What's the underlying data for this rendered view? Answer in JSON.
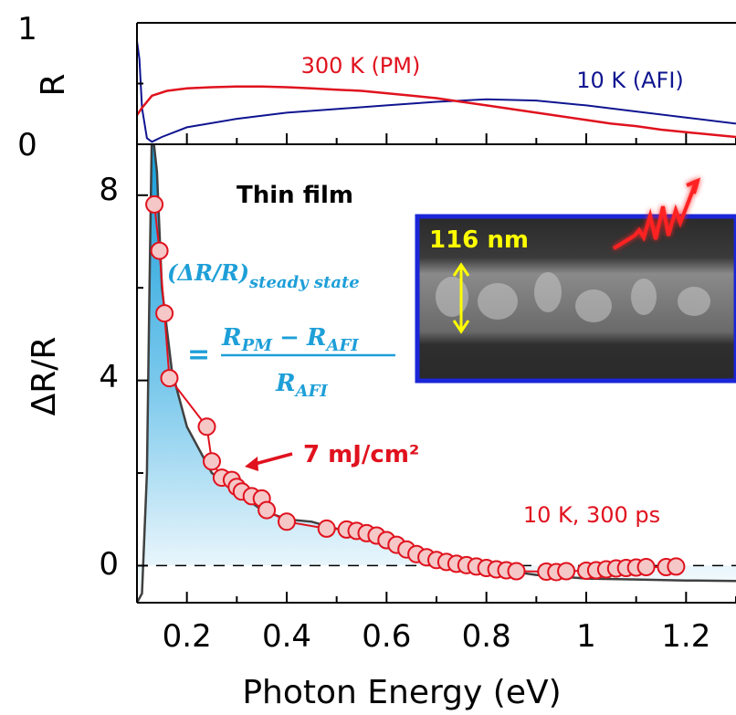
{
  "chart_data": [
    {
      "type": "line",
      "panel": "top",
      "ylabel": "R",
      "xlim": [
        0.1,
        1.3
      ],
      "ylim": [
        0,
        1
      ],
      "y_ticks": [
        "0",
        "1"
      ],
      "series": [
        {
          "name": "300 K (PM)",
          "color": "#e0121e",
          "x": [
            0.1,
            0.11,
            0.13,
            0.16,
            0.2,
            0.25,
            0.3,
            0.35,
            0.4,
            0.45,
            0.5,
            0.55,
            0.6,
            0.65,
            0.7,
            0.75,
            0.8,
            0.85,
            0.9,
            0.95,
            1.0,
            1.05,
            1.1,
            1.15,
            1.2,
            1.25,
            1.3
          ],
          "y": [
            0.24,
            0.3,
            0.4,
            0.44,
            0.46,
            0.47,
            0.475,
            0.475,
            0.47,
            0.46,
            0.45,
            0.44,
            0.42,
            0.4,
            0.38,
            0.35,
            0.32,
            0.29,
            0.26,
            0.23,
            0.2,
            0.17,
            0.15,
            0.12,
            0.1,
            0.08,
            0.06
          ]
        },
        {
          "name": "10 K (AFI)",
          "color": "#0f1590",
          "x": [
            0.1,
            0.105,
            0.11,
            0.12,
            0.13,
            0.15,
            0.2,
            0.3,
            0.4,
            0.5,
            0.6,
            0.7,
            0.8,
            0.9,
            1.0,
            1.1,
            1.2,
            1.3
          ],
          "y": [
            0.85,
            0.7,
            0.3,
            0.05,
            0.02,
            0.06,
            0.14,
            0.21,
            0.26,
            0.29,
            0.32,
            0.35,
            0.37,
            0.36,
            0.32,
            0.27,
            0.22,
            0.17
          ]
        }
      ],
      "annotations": [
        "300 K (PM)",
        "10 K (AFI)"
      ]
    },
    {
      "type": "line",
      "panel": "bottom",
      "xlabel": "Photon Energy (eV)",
      "ylabel": "ΔR/R",
      "xlim": [
        0.1,
        1.3
      ],
      "ylim": [
        -0.8,
        9.1
      ],
      "x_ticks": [
        "0.2",
        "0.4",
        "0.6",
        "0.8",
        "1",
        "1.2"
      ],
      "y_ticks": [
        "0",
        "4",
        "8"
      ],
      "series": [
        {
          "name": "(ΔR/R) steady state",
          "color": "#404040",
          "x": [
            0.1,
            0.11,
            0.12,
            0.125,
            0.13,
            0.14,
            0.15,
            0.17,
            0.2,
            0.25,
            0.3,
            0.35,
            0.4,
            0.45,
            0.5,
            0.6,
            0.7,
            0.8,
            0.9,
            1.0,
            1.1,
            1.2,
            1.3
          ],
          "y": [
            -0.8,
            -0.6,
            2.0,
            6.0,
            9.5,
            8.5,
            6.0,
            4.2,
            3.0,
            2.0,
            1.6,
            1.2,
            1.0,
            0.95,
            0.8,
            0.5,
            0.2,
            -0.05,
            -0.2,
            -0.28,
            -0.3,
            -0.32,
            -0.33
          ]
        },
        {
          "name": "7 mJ/cm²",
          "color": "#e0121e",
          "marker_fill": "#f5c7c7",
          "x": [
            0.135,
            0.145,
            0.155,
            0.165,
            0.24,
            0.25,
            0.27,
            0.29,
            0.3,
            0.31,
            0.33,
            0.35,
            0.36,
            0.4,
            0.48,
            0.52,
            0.54,
            0.56,
            0.58,
            0.6,
            0.62,
            0.64,
            0.66,
            0.68,
            0.7,
            0.72,
            0.74,
            0.76,
            0.78,
            0.8,
            0.82,
            0.84,
            0.86,
            0.92,
            0.94,
            0.96,
            1.0,
            1.02,
            1.04,
            1.06,
            1.08,
            1.1,
            1.12,
            1.16,
            1.18
          ],
          "y": [
            7.8,
            6.8,
            5.45,
            4.05,
            3.0,
            2.25,
            1.9,
            1.85,
            1.7,
            1.6,
            1.5,
            1.45,
            1.2,
            0.95,
            0.8,
            0.78,
            0.75,
            0.7,
            0.65,
            0.55,
            0.45,
            0.35,
            0.25,
            0.18,
            0.12,
            0.08,
            0.04,
            0.01,
            -0.02,
            -0.05,
            -0.08,
            -0.1,
            -0.12,
            -0.13,
            -0.14,
            -0.12,
            -0.11,
            -0.1,
            -0.08,
            -0.06,
            -0.05,
            -0.04,
            -0.03,
            -0.03,
            -0.02
          ]
        }
      ],
      "annotations": {
        "sample": "Thin film",
        "formula_lhs": "(ΔR/R)",
        "formula_lhs_sub": "steady state",
        "formula_eq": "=",
        "formula_num": "R",
        "formula_num_sub1": "PM",
        "formula_minus": "−",
        "formula_num2": "R",
        "formula_num_sub2": "AFI",
        "formula_den": "R",
        "formula_den_sub": "AFI",
        "fluence": "7 mJ/cm²",
        "condition": "10 K, 300 ps",
        "inset_thickness": "116 nm"
      },
      "zero_line": "dashed"
    }
  ],
  "colors": {
    "pm": "#e0121e",
    "afi": "#0f1590",
    "fill": "#1aa0dc",
    "formula": "#1e9fd8",
    "inset_border": "#1a26d8",
    "inset_label": "#ffff00"
  }
}
